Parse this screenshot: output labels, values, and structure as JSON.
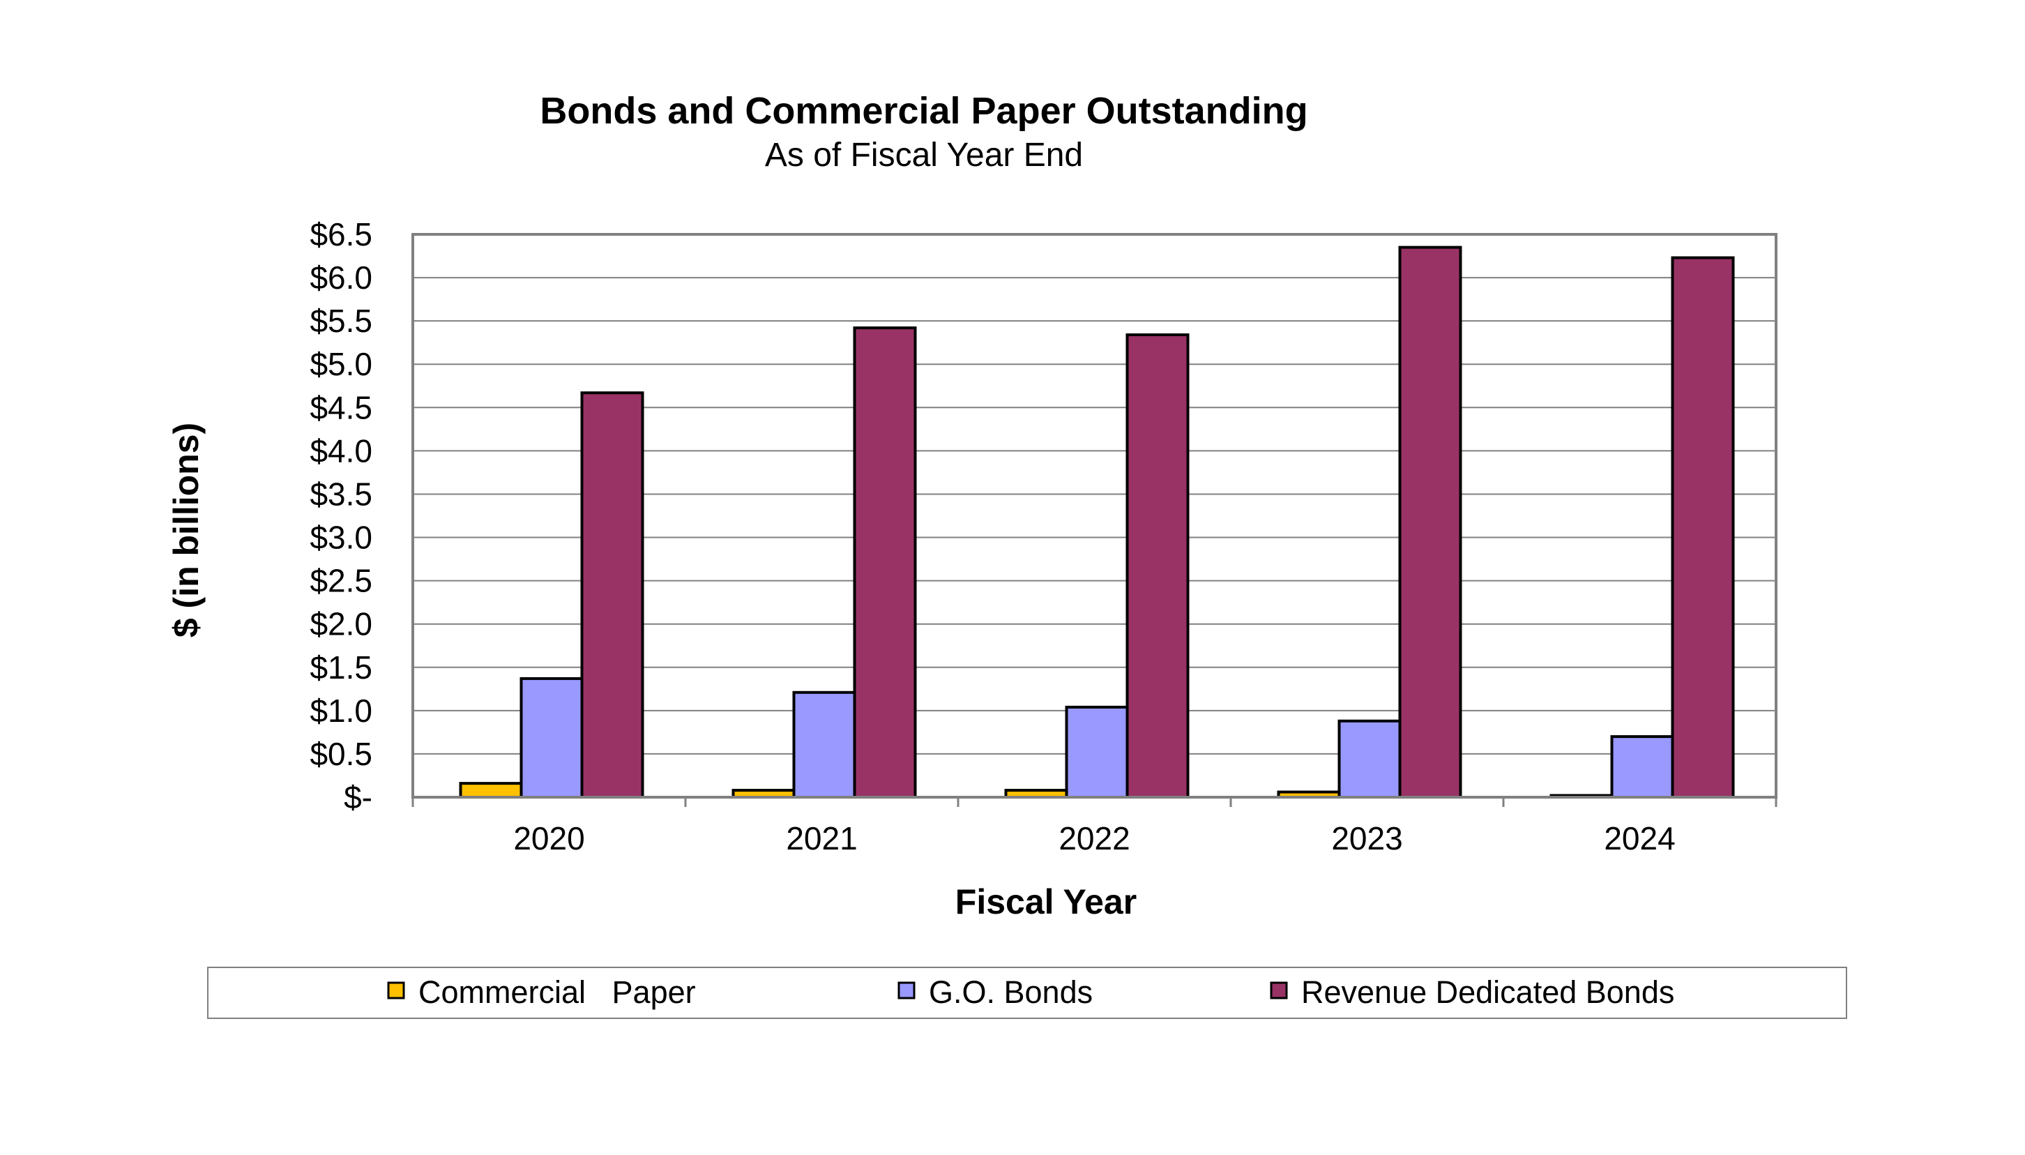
{
  "chart_data": {
    "type": "bar",
    "title": "Bonds and Commercial Paper Outstanding",
    "subtitle": "As of Fiscal Year End",
    "xlabel": "Fiscal Year",
    "ylabel": "$ (in billions)",
    "categories": [
      "2020",
      "2021",
      "2022",
      "2023",
      "2024"
    ],
    "ylim": [
      0,
      6.5
    ],
    "yticks": [
      0,
      0.5,
      1.0,
      1.5,
      2.0,
      2.5,
      3.0,
      3.5,
      4.0,
      4.5,
      5.0,
      5.5,
      6.0,
      6.5
    ],
    "ytick_labels": [
      "$-",
      "$0.5",
      "$1.0",
      "$1.5",
      "$2.0",
      "$2.5",
      "$3.0",
      "$3.5",
      "$4.0",
      "$4.5",
      "$5.0",
      "$5.5",
      "$6.0",
      "$6.5"
    ],
    "grid": true,
    "legend_position": "bottom",
    "series": [
      {
        "name": "Commercial   Paper",
        "color": "#FFC000",
        "values": [
          0.16,
          0.08,
          0.08,
          0.06,
          0.02
        ]
      },
      {
        "name": "G.O. Bonds",
        "color": "#9999FF",
        "values": [
          1.37,
          1.21,
          1.04,
          0.88,
          0.7
        ]
      },
      {
        "name": "Revenue Dedicated Bonds",
        "color": "#993366",
        "values": [
          4.67,
          5.42,
          5.34,
          6.35,
          6.23
        ]
      }
    ]
  }
}
